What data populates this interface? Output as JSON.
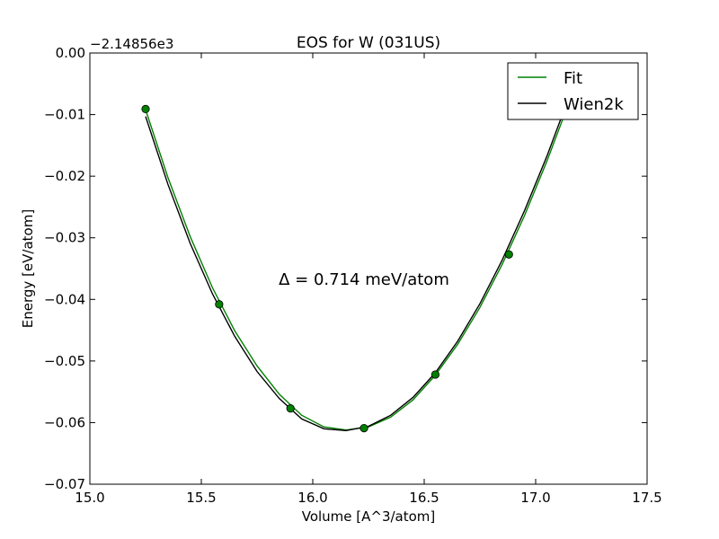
{
  "chart_data": {
    "type": "scatter",
    "title": "EOS for W (031US)",
    "xlabel": "Volume [A^3/atom]",
    "ylabel": "Energy [eV/atom]",
    "offset_label": "−2.14856e3",
    "xlim": [
      15.0,
      17.5
    ],
    "ylim": [
      -0.07,
      0.0
    ],
    "xticks": [
      15.0,
      15.5,
      16.0,
      16.5,
      17.0,
      17.5
    ],
    "xtick_labels": [
      "15.0",
      "15.5",
      "16.0",
      "16.5",
      "17.0",
      "17.5"
    ],
    "yticks": [
      0.0,
      -0.01,
      -0.02,
      -0.03,
      -0.04,
      -0.05,
      -0.06,
      -0.07
    ],
    "ytick_labels": [
      "0.00",
      "−0.01",
      "−0.02",
      "−0.03",
      "−0.04",
      "−0.05",
      "−0.06",
      "−0.07"
    ],
    "grid": false,
    "legend_position": "top-right",
    "annotation": "Δ = 0.714 meV/atom",
    "points": {
      "x": [
        15.25,
        15.58,
        15.9,
        16.23,
        16.55,
        16.88
      ],
      "y": [
        -0.0091,
        -0.0408,
        -0.0577,
        -0.0609,
        -0.0522,
        -0.0327
      ],
      "color": "#008000"
    },
    "series": [
      {
        "name": "Fit",
        "color": "#008000",
        "x": [
          15.25,
          15.35,
          15.45,
          15.55,
          15.65,
          15.75,
          15.85,
          15.95,
          16.05,
          16.15,
          16.25,
          16.35,
          16.45,
          16.55,
          16.65,
          16.75,
          16.85,
          16.95,
          17.05,
          17.15
        ],
        "y": [
          -0.0092,
          -0.0202,
          -0.0298,
          -0.0381,
          -0.0451,
          -0.0508,
          -0.0554,
          -0.0588,
          -0.0607,
          -0.0612,
          -0.0607,
          -0.0591,
          -0.0563,
          -0.0523,
          -0.0473,
          -0.0413,
          -0.0343,
          -0.0264,
          -0.0176,
          -0.008
        ]
      },
      {
        "name": "Wien2k",
        "color": "#000000",
        "x": [
          15.25,
          15.35,
          15.45,
          15.55,
          15.65,
          15.75,
          15.85,
          15.95,
          16.05,
          16.15,
          16.25,
          16.35,
          16.45,
          16.55,
          16.65,
          16.75,
          16.85,
          16.95,
          17.05,
          17.15
        ],
        "y": [
          -0.0103,
          -0.0213,
          -0.0309,
          -0.0391,
          -0.046,
          -0.0517,
          -0.0561,
          -0.0594,
          -0.061,
          -0.0613,
          -0.0606,
          -0.0588,
          -0.0559,
          -0.0519,
          -0.0468,
          -0.0407,
          -0.0336,
          -0.0256,
          -0.0168,
          -0.0071
        ]
      }
    ]
  }
}
